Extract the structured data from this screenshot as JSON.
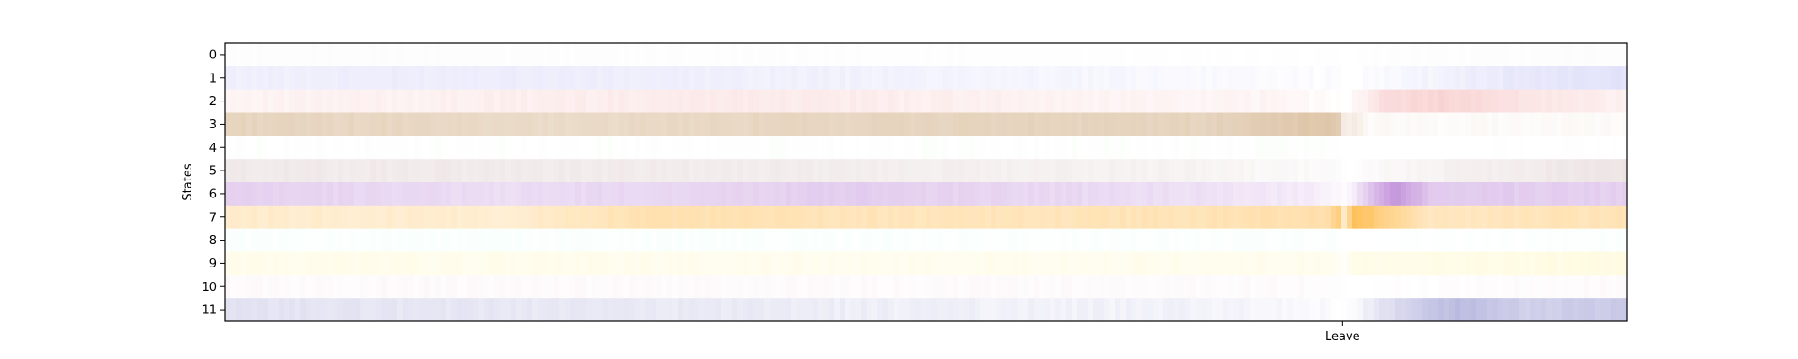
{
  "chart_data": {
    "type": "heatmap",
    "ylabel": "States",
    "y_tick_labels": [
      "0",
      "1",
      "2",
      "3",
      "4",
      "5",
      "6",
      "7",
      "8",
      "9",
      "10",
      "11"
    ],
    "x_tick_labels": [
      "Leave"
    ],
    "x_tick_position_fraction": 0.797,
    "row_colors": [
      "#e8e8e8",
      "#9999ee",
      "#ee8888",
      "#c8a070",
      "#c8e8c8",
      "#c0a0a0",
      "#aa66cc",
      "#ffb030",
      "#b0ffe0",
      "#fff090",
      "#e0b0c0",
      "#6666bb"
    ],
    "row_profiles": [
      [
        [
          0,
          0.08
        ],
        [
          0.1,
          0.1
        ],
        [
          0.5,
          0.05
        ],
        [
          0.79,
          0.03
        ],
        [
          0.8,
          0.0
        ],
        [
          0.82,
          0.06
        ],
        [
          1.0,
          0.1
        ]
      ],
      [
        [
          0,
          0.15
        ],
        [
          0.2,
          0.18
        ],
        [
          0.5,
          0.12
        ],
        [
          0.7,
          0.06
        ],
        [
          0.79,
          0.02
        ],
        [
          0.8,
          0.0
        ],
        [
          0.85,
          0.1
        ],
        [
          0.92,
          0.22
        ],
        [
          1.0,
          0.28
        ]
      ],
      [
        [
          0,
          0.1
        ],
        [
          0.15,
          0.12
        ],
        [
          0.37,
          0.18
        ],
        [
          0.6,
          0.1
        ],
        [
          0.75,
          0.08
        ],
        [
          0.79,
          0.02
        ],
        [
          0.8,
          0.0
        ],
        [
          0.83,
          0.3
        ],
        [
          0.87,
          0.35
        ],
        [
          0.93,
          0.22
        ],
        [
          1.0,
          0.12
        ]
      ],
      [
        [
          0,
          0.45
        ],
        [
          0.25,
          0.38
        ],
        [
          0.5,
          0.45
        ],
        [
          0.7,
          0.45
        ],
        [
          0.78,
          0.6
        ],
        [
          0.795,
          0.55
        ],
        [
          0.8,
          0.0
        ],
        [
          0.803,
          0.25
        ],
        [
          0.815,
          0.05
        ],
        [
          1.0,
          0.05
        ]
      ],
      [
        [
          0,
          0.03
        ],
        [
          0.3,
          0.03
        ],
        [
          0.79,
          0.03
        ],
        [
          0.8,
          0.0
        ],
        [
          1.0,
          0.02
        ]
      ],
      [
        [
          0,
          0.22
        ],
        [
          0.4,
          0.2
        ],
        [
          0.7,
          0.12
        ],
        [
          0.79,
          0.05
        ],
        [
          0.8,
          0.0
        ],
        [
          0.85,
          0.12
        ],
        [
          1.0,
          0.28
        ]
      ],
      [
        [
          0,
          0.3
        ],
        [
          0.2,
          0.22
        ],
        [
          0.45,
          0.32
        ],
        [
          0.7,
          0.2
        ],
        [
          0.78,
          0.12
        ],
        [
          0.8,
          0.0
        ],
        [
          0.81,
          0.25
        ],
        [
          0.835,
          0.7
        ],
        [
          0.86,
          0.35
        ],
        [
          1.0,
          0.3
        ]
      ],
      [
        [
          0,
          0.25
        ],
        [
          0.2,
          0.22
        ],
        [
          0.3,
          0.38
        ],
        [
          0.5,
          0.32
        ],
        [
          0.7,
          0.35
        ],
        [
          0.785,
          0.4
        ],
        [
          0.795,
          0.65
        ],
        [
          0.8,
          0.0
        ],
        [
          0.803,
          0.85
        ],
        [
          0.825,
          0.6
        ],
        [
          0.86,
          0.3
        ],
        [
          1.0,
          0.35
        ]
      ],
      [
        [
          0,
          0.06
        ],
        [
          0.79,
          0.05
        ],
        [
          0.8,
          0.0
        ],
        [
          1.0,
          0.06
        ]
      ],
      [
        [
          0,
          0.18
        ],
        [
          0.5,
          0.15
        ],
        [
          0.79,
          0.16
        ],
        [
          0.8,
          0.0
        ],
        [
          0.803,
          0.2
        ],
        [
          1.0,
          0.25
        ]
      ],
      [
        [
          0,
          0.06
        ],
        [
          0.79,
          0.05
        ],
        [
          0.8,
          0.0
        ],
        [
          1.0,
          0.06
        ]
      ],
      [
        [
          0,
          0.18
        ],
        [
          0.3,
          0.14
        ],
        [
          0.5,
          0.1
        ],
        [
          0.7,
          0.08
        ],
        [
          0.79,
          0.03
        ],
        [
          0.8,
          0.0
        ],
        [
          0.83,
          0.22
        ],
        [
          0.88,
          0.45
        ],
        [
          0.93,
          0.3
        ],
        [
          1.0,
          0.35
        ]
      ]
    ]
  }
}
